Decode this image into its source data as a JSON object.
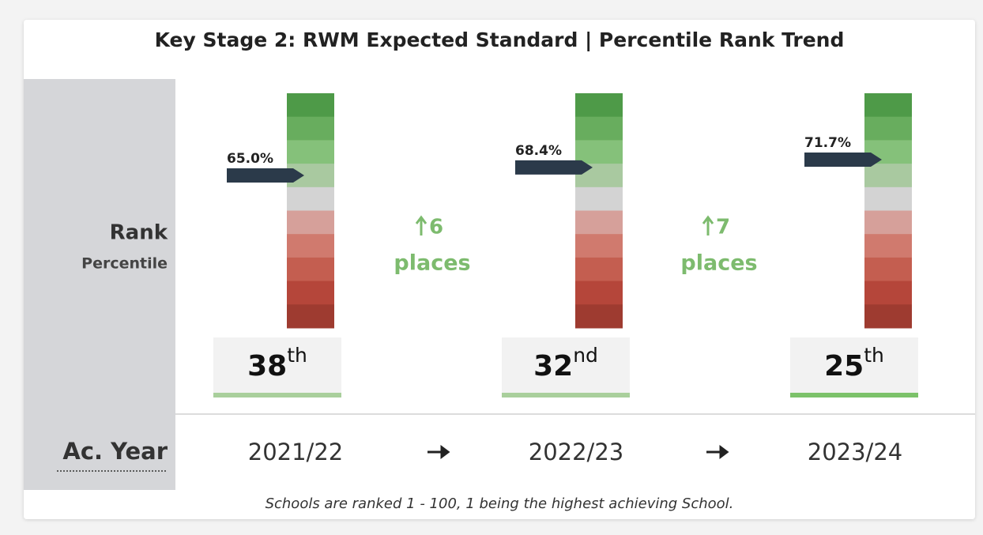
{
  "title": "Key Stage 2: RWM Expected Standard | Percentile Rank Trend",
  "row_labels": {
    "rank": "Rank",
    "percentile": "Percentile",
    "year": "Ac. Year"
  },
  "columns": [
    {
      "year": "2021/22",
      "percentile": 65.0,
      "percentile_label": "65.0%",
      "rank": 38,
      "rank_suffix": "th"
    },
    {
      "year": "2022/23",
      "percentile": 68.4,
      "percentile_label": "68.4%",
      "rank": 32,
      "rank_suffix": "nd"
    },
    {
      "year": "2023/24",
      "percentile": 71.7,
      "percentile_label": "71.7%",
      "rank": 25,
      "rank_suffix": "th"
    }
  ],
  "changes": [
    {
      "places": 6,
      "unit": "places"
    },
    {
      "places": 7,
      "unit": "places"
    }
  ],
  "footnote": "Schools are ranked 1 - 100, 1 being the highest achieving School."
}
